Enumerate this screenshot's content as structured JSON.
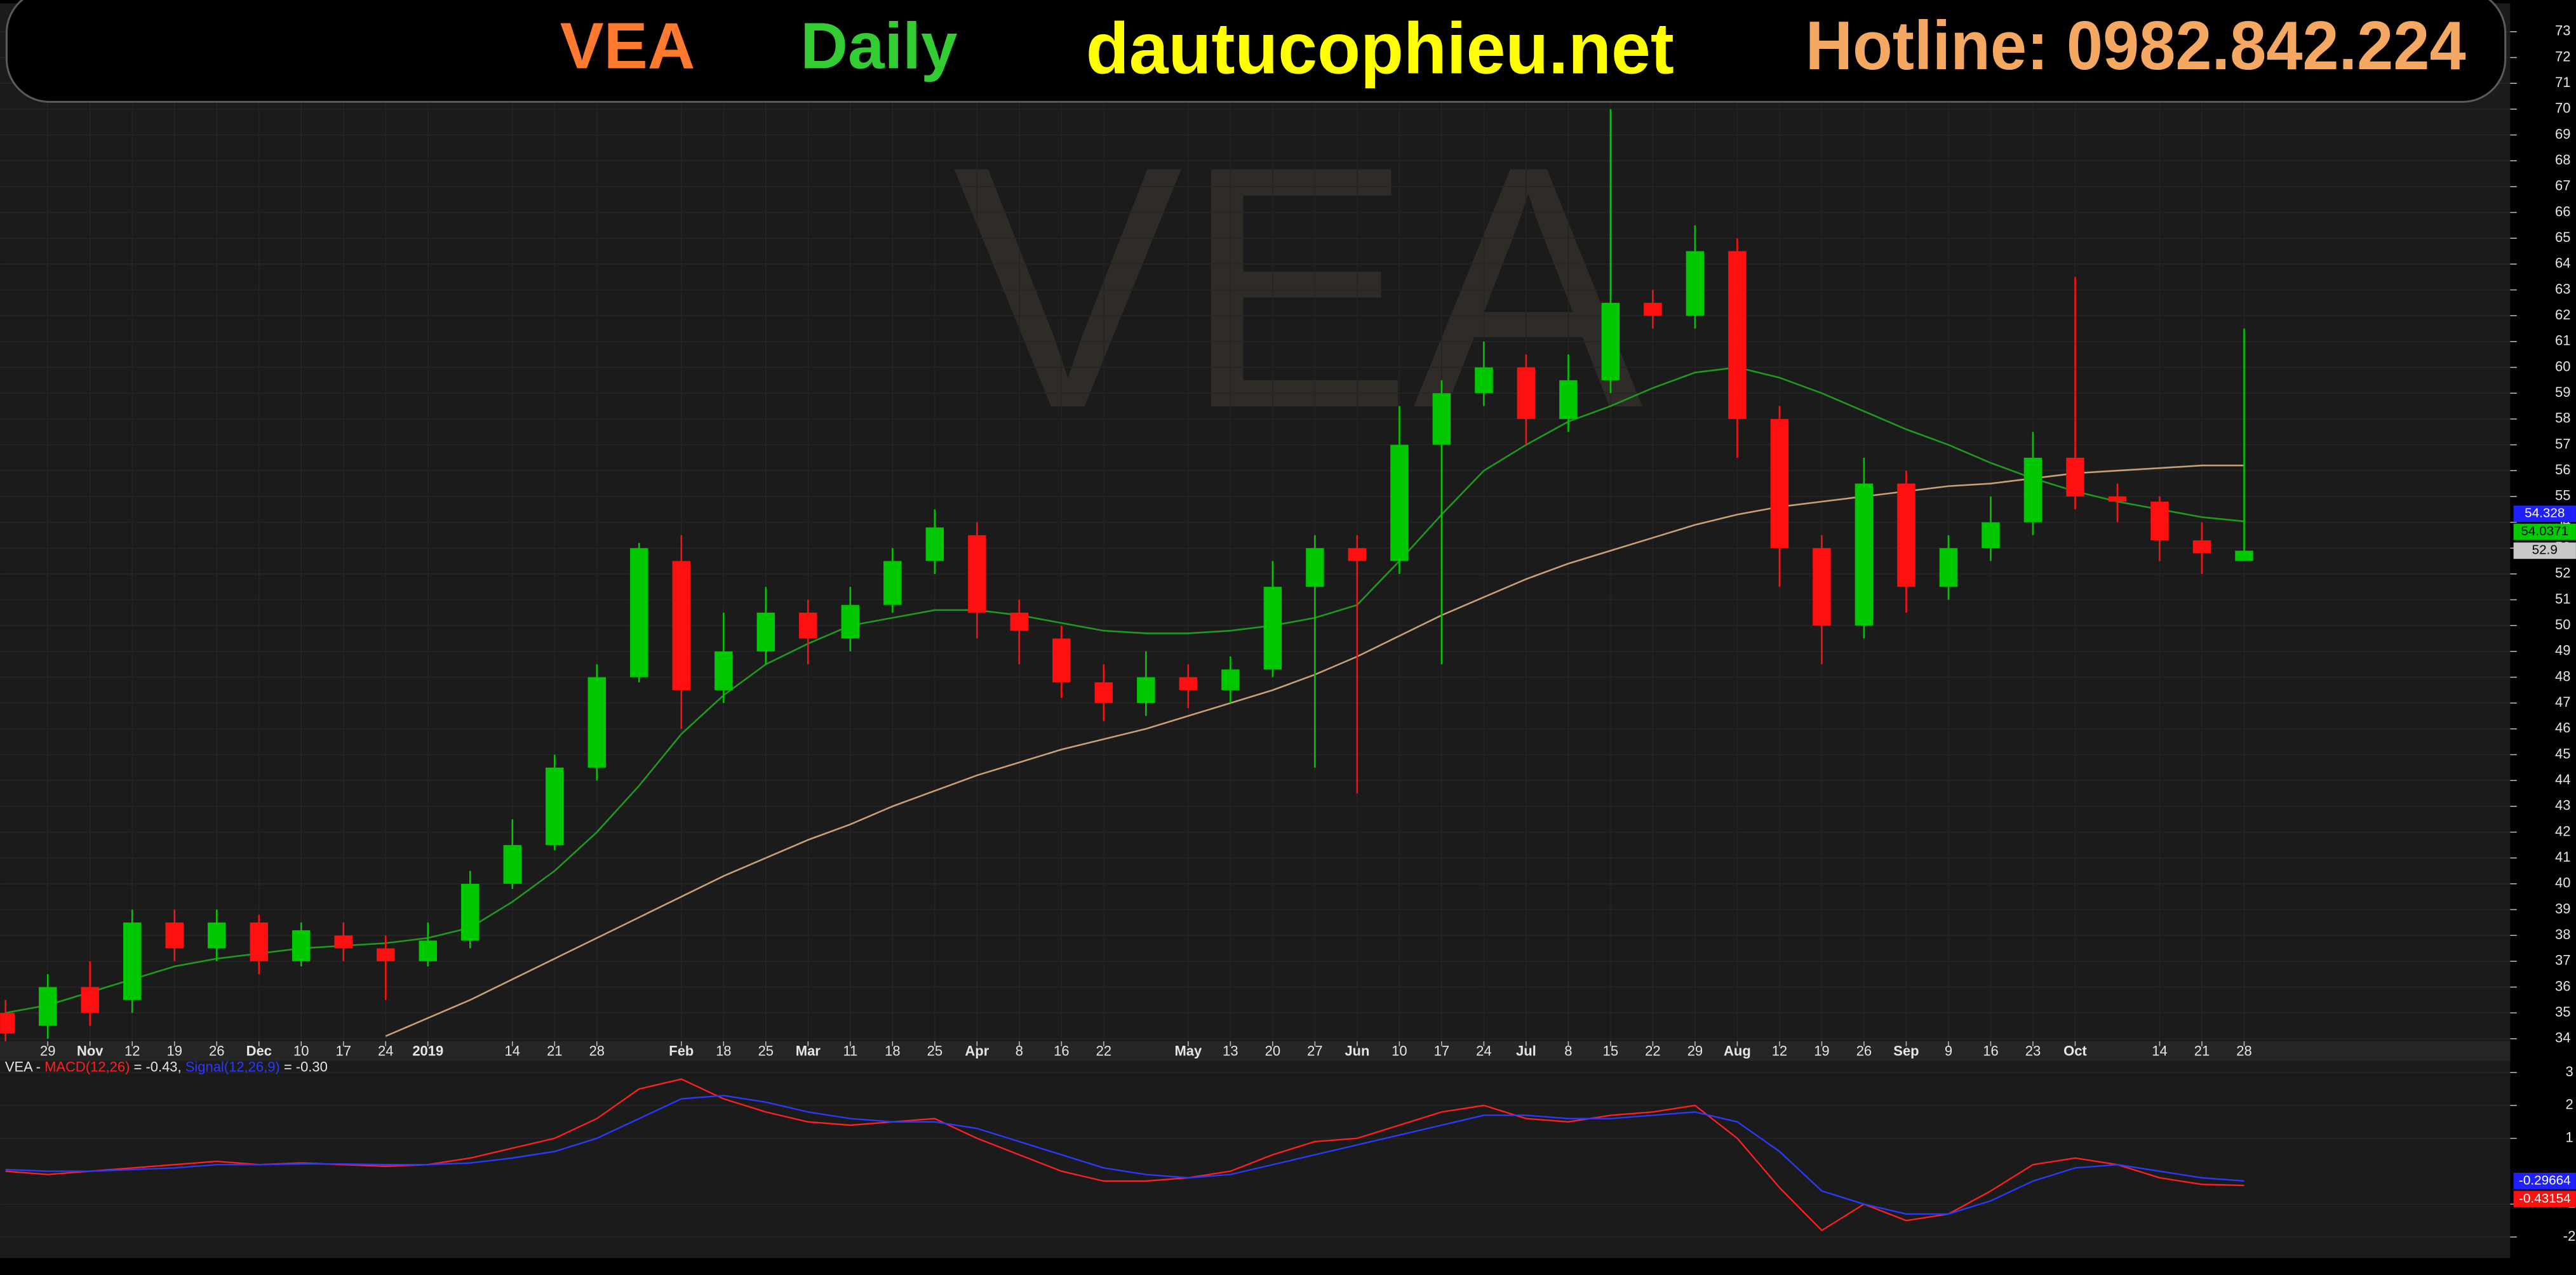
{
  "header": {
    "symbol": "VEA",
    "period": "Daily",
    "site": "dautucophieu.net",
    "hotline": "Hotline: 0982.842.224",
    "colors": {
      "symbol": "#ff7a2e",
      "period": "#33cc33",
      "site": "#ffff00",
      "hotline": "#f5a862"
    }
  },
  "chart_data": [
    {
      "type": "candlestick",
      "x": [
        0,
        1,
        2,
        3,
        4,
        5,
        6,
        7,
        8,
        9,
        10,
        11,
        12,
        13,
        14,
        15,
        16,
        17,
        18,
        19,
        20,
        21,
        22,
        23,
        24,
        25,
        26,
        27,
        28,
        29,
        30,
        31,
        32,
        33,
        34,
        35,
        36,
        37,
        38,
        39,
        40,
        41,
        42,
        43,
        44,
        45,
        46,
        47,
        48,
        49,
        50,
        51,
        52,
        53
      ],
      "open": [
        35,
        34.5,
        36,
        35.5,
        38.5,
        37.5,
        38.5,
        37,
        38,
        37.5,
        37,
        37.8,
        40,
        41.5,
        44.5,
        48,
        52.5,
        47.5,
        49,
        50.5,
        49.5,
        50.8,
        52.5,
        53.5,
        50.5,
        49.5,
        47.8,
        47,
        48,
        47.5,
        48.3,
        51.5,
        53,
        52.5,
        57,
        59,
        60,
        58,
        59.5,
        62.5,
        62,
        64.5,
        58,
        53,
        50,
        55.5,
        51.5,
        53,
        54,
        56.5,
        55,
        54.8,
        53.3,
        52.5
      ],
      "high": [
        35.5,
        36.5,
        37,
        39,
        39,
        39,
        38.8,
        38.5,
        38.5,
        38,
        38.5,
        40.5,
        42.5,
        45,
        48.5,
        53.2,
        53.5,
        50.5,
        51.5,
        51,
        51.5,
        53,
        54.5,
        54,
        51,
        50,
        48.5,
        49,
        48.5,
        48.8,
        52.5,
        53.5,
        53.5,
        58.5,
        59.5,
        61,
        60.5,
        60.5,
        70,
        63,
        65.5,
        65,
        58.5,
        53.5,
        56.5,
        56,
        53.5,
        55,
        57.5,
        63.5,
        55.5,
        55,
        54,
        61.5
      ],
      "low": [
        33.8,
        34,
        34.5,
        35,
        37,
        37,
        36.5,
        36.8,
        37,
        35.5,
        36.8,
        37.5,
        39.8,
        41.3,
        44,
        47.8,
        46,
        47,
        48.5,
        48.5,
        49,
        50.5,
        52,
        49.5,
        48.5,
        47.2,
        46.3,
        46.5,
        46.8,
        47,
        48,
        44.5,
        43.5,
        52,
        48.5,
        58.5,
        57,
        57.5,
        59,
        61.5,
        61.5,
        56.5,
        51.5,
        48.5,
        49.5,
        50.5,
        51,
        52.5,
        53.5,
        54.5,
        54,
        52.5,
        52,
        52.5
      ],
      "close": [
        34.2,
        36,
        35,
        38.5,
        37.5,
        38.5,
        37,
        38.2,
        37.5,
        37,
        37.8,
        40,
        41.5,
        44.5,
        48,
        53,
        47.5,
        49,
        50.5,
        49.5,
        50.8,
        52.5,
        53.8,
        50.5,
        49.8,
        47.8,
        47,
        48,
        47.5,
        48.3,
        51.5,
        53,
        52.5,
        57,
        59,
        60,
        58,
        59.5,
        62.5,
        62,
        64.5,
        58,
        53,
        50,
        55.5,
        51.5,
        53,
        54,
        56.5,
        55,
        54.8,
        53.3,
        52.8,
        52.9
      ],
      "up_color": "#00c800",
      "down_color": "#ff1010",
      "lines": [
        {
          "color": "#1f9a1f",
          "values": [
            35,
            35.3,
            35.8,
            36.3,
            36.8,
            37.1,
            37.3,
            37.5,
            37.6,
            37.7,
            37.9,
            38.3,
            39.3,
            40.5,
            42,
            43.8,
            45.8,
            47.3,
            48.5,
            49.3,
            50,
            50.3,
            50.6,
            50.6,
            50.4,
            50.1,
            49.8,
            49.7,
            49.7,
            49.8,
            50,
            50.3,
            50.8,
            52.5,
            54.3,
            56,
            57,
            57.9,
            58.5,
            59.2,
            59.8,
            60,
            59.6,
            59,
            58.3,
            57.6,
            57,
            56.3,
            55.7,
            55.2,
            54.8,
            54.5,
            54.2,
            54.0371
          ]
        },
        {
          "color": "#c8a078",
          "values": [
            null,
            null,
            null,
            null,
            null,
            null,
            null,
            null,
            null,
            34.1,
            34.8,
            35.5,
            36.3,
            37.1,
            37.9,
            38.7,
            39.5,
            40.3,
            41,
            41.7,
            42.3,
            43,
            43.6,
            44.2,
            44.7,
            45.2,
            45.6,
            46,
            46.5,
            47,
            47.5,
            48.1,
            48.8,
            49.6,
            50.4,
            51.1,
            51.8,
            52.4,
            52.9,
            53.4,
            53.9,
            54.3,
            54.6,
            54.8,
            55,
            55.2,
            55.4,
            55.5,
            55.7,
            55.9,
            56,
            56.1,
            56.2,
            56.2
          ]
        }
      ],
      "price_labels": [
        {
          "value": 54.328,
          "label": "54.328",
          "color": "#2020ff"
        },
        {
          "value": 54.0371,
          "label": "54.0371",
          "color": "#00cc00"
        },
        {
          "value": 52.9,
          "label": "52.9",
          "color": "#c8c8c8"
        }
      ],
      "xlim": [
        -0.13,
        59.3
      ],
      "ylim": [
        33.9,
        74.1
      ],
      "yticks": [
        34,
        35,
        36,
        37,
        38,
        39,
        40,
        41,
        42,
        43,
        44,
        45,
        46,
        47,
        48,
        49,
        50,
        51,
        52,
        53,
        54,
        55,
        56,
        57,
        58,
        59,
        60,
        61,
        62,
        63,
        64,
        65,
        66,
        67,
        68,
        69,
        70,
        71,
        72,
        73
      ],
      "xticks": [
        {
          "value": 1,
          "label": "29"
        },
        {
          "value": 2,
          "label": "Nov"
        },
        {
          "value": 3,
          "label": "12"
        },
        {
          "value": 4,
          "label": "19"
        },
        {
          "value": 5,
          "label": "26"
        },
        {
          "value": 6,
          "label": "Dec"
        },
        {
          "value": 7,
          "label": "10"
        },
        {
          "value": 8,
          "label": "17"
        },
        {
          "value": 9,
          "label": "24"
        },
        {
          "value": 10,
          "label": "2019"
        },
        {
          "value": 12,
          "label": "14"
        },
        {
          "value": 13,
          "label": "21"
        },
        {
          "value": 14,
          "label": "28"
        },
        {
          "value": 16,
          "label": "Feb"
        },
        {
          "value": 17,
          "label": "18"
        },
        {
          "value": 18,
          "label": "25"
        },
        {
          "value": 19,
          "label": "Mar"
        },
        {
          "value": 20,
          "label": "11"
        },
        {
          "value": 21,
          "label": "18"
        },
        {
          "value": 22,
          "label": "25"
        },
        {
          "value": 23,
          "label": "Apr"
        },
        {
          "value": 24,
          "label": "8"
        },
        {
          "value": 25,
          "label": "16"
        },
        {
          "value": 26,
          "label": "22"
        },
        {
          "value": 28,
          "label": "May"
        },
        {
          "value": 29,
          "label": "13"
        },
        {
          "value": 30,
          "label": "20"
        },
        {
          "value": 31,
          "label": "27"
        },
        {
          "value": 32,
          "label": "Jun"
        },
        {
          "value": 33,
          "label": "10"
        },
        {
          "value": 34,
          "label": "17"
        },
        {
          "value": 35,
          "label": "24"
        },
        {
          "value": 36,
          "label": "Jul"
        },
        {
          "value": 37,
          "label": "8"
        },
        {
          "value": 38,
          "label": "15"
        },
        {
          "value": 39,
          "label": "22"
        },
        {
          "value": 40,
          "label": "29"
        },
        {
          "value": 41,
          "label": "Aug"
        },
        {
          "value": 42,
          "label": "12"
        },
        {
          "value": 43,
          "label": "19"
        },
        {
          "value": 44,
          "label": "26"
        },
        {
          "value": 45,
          "label": "Sep"
        },
        {
          "value": 46,
          "label": "9"
        },
        {
          "value": 47,
          "label": "16"
        },
        {
          "value": 48,
          "label": "23"
        },
        {
          "value": 49,
          "label": "Oct"
        },
        {
          "value": 51,
          "label": "14"
        },
        {
          "value": 52,
          "label": "21"
        },
        {
          "value": 53,
          "label": "28"
        }
      ],
      "grid": true
    },
    {
      "type": "line",
      "legend_prefix": "VEA - ",
      "x": [
        0,
        1,
        2,
        3,
        4,
        5,
        6,
        7,
        8,
        9,
        10,
        11,
        12,
        13,
        14,
        15,
        16,
        17,
        18,
        19,
        20,
        21,
        22,
        23,
        24,
        25,
        26,
        27,
        28,
        29,
        30,
        31,
        32,
        33,
        34,
        35,
        36,
        37,
        38,
        39,
        40,
        41,
        42,
        43,
        44,
        45,
        46,
        47,
        48,
        49,
        50,
        51,
        52,
        53
      ],
      "series": [
        {
          "name": "MACD(12,26)",
          "readout": " = -0.43, ",
          "color": "#ff2020",
          "values": [
            0,
            -0.1,
            0,
            0.1,
            0.2,
            0.3,
            0.2,
            0.25,
            0.2,
            0.15,
            0.2,
            0.4,
            0.7,
            1,
            1.6,
            2.5,
            2.8,
            2.2,
            1.8,
            1.5,
            1.4,
            1.5,
            1.6,
            1,
            0.5,
            0,
            -0.3,
            -0.3,
            -0.2,
            0,
            0.5,
            0.9,
            1,
            1.4,
            1.8,
            2,
            1.6,
            1.5,
            1.7,
            1.8,
            2,
            1,
            -0.5,
            -1.8,
            -1,
            -1.5,
            -1.3,
            -0.6,
            0.2,
            0.4,
            0.2,
            -0.2,
            -0.4,
            -0.43154
          ]
        },
        {
          "name": "Signal(12,26,9)",
          "readout": " = -0.30",
          "color": "#2a3aff",
          "values": [
            0.05,
            0,
            0,
            0.05,
            0.1,
            0.2,
            0.2,
            0.22,
            0.22,
            0.2,
            0.2,
            0.25,
            0.4,
            0.6,
            1,
            1.6,
            2.2,
            2.3,
            2.1,
            1.8,
            1.6,
            1.5,
            1.5,
            1.3,
            0.9,
            0.5,
            0.1,
            -0.1,
            -0.2,
            -0.1,
            0.2,
            0.5,
            0.8,
            1.1,
            1.4,
            1.7,
            1.7,
            1.6,
            1.6,
            1.7,
            1.8,
            1.5,
            0.6,
            -0.6,
            -1,
            -1.3,
            -1.3,
            -0.9,
            -0.3,
            0.1,
            0.2,
            0,
            -0.2,
            -0.29664
          ]
        }
      ],
      "value_labels": [
        {
          "value": -0.29664,
          "label": "-0.29664",
          "color": "#2020ff"
        },
        {
          "value": -0.43154,
          "label": "-0.43154",
          "color": "#ff1010"
        }
      ],
      "xlim": [
        -0.13,
        59.3
      ],
      "ylim": [
        -2.64,
        3.35
      ],
      "yticks": [
        -2,
        -1,
        1,
        2,
        3
      ],
      "grid": true
    }
  ]
}
